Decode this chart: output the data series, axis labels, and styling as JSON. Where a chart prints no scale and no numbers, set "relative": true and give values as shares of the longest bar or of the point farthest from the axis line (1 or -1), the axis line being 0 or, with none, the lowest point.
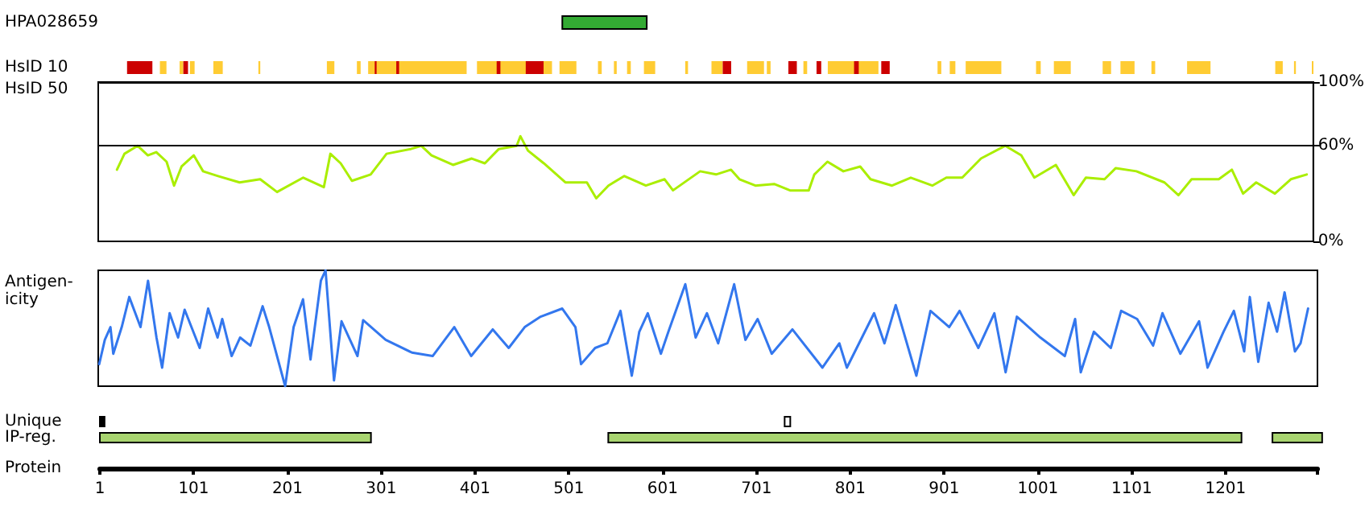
{
  "chart_data": [
    {
      "type": "bar",
      "orientation": "horizontal",
      "categories": [
        "HPA028659",
        "HsID 10"
      ],
      "xlim": [
        1,
        1299
      ],
      "tick_labels": "y",
      "series": [
        {
          "color": "#33aa33",
          "base": [
            494,
            null
          ],
          "values": [
            90,
            null
          ]
        },
        {
          "color": "#ffcc33",
          "base": [
            null,
            65
          ],
          "values": [
            null,
            7
          ]
        },
        {
          "color": "#ffcc33",
          "base": [
            null,
            86
          ],
          "values": [
            null,
            4
          ]
        },
        {
          "color": "#ffcc33",
          "base": [
            null,
            97
          ],
          "values": [
            null,
            5
          ]
        },
        {
          "color": "#ffcc33",
          "base": [
            null,
            122
          ],
          "values": [
            null,
            10
          ]
        },
        {
          "color": "#ffcc33",
          "base": [
            null,
            170
          ],
          "values": [
            null,
            2
          ]
        },
        {
          "color": "#ffcc33",
          "base": [
            null,
            243
          ],
          "values": [
            null,
            8
          ]
        },
        {
          "color": "#ffcc33",
          "base": [
            null,
            275
          ],
          "values": [
            null,
            4
          ]
        },
        {
          "color": "#ffcc33",
          "base": [
            null,
            287
          ],
          "values": [
            null,
            32
          ]
        },
        {
          "color": "#ffcc33",
          "base": [
            null,
            319
          ],
          "values": [
            null,
            73
          ]
        },
        {
          "color": "#ffcc33",
          "base": [
            null,
            403
          ],
          "values": [
            null,
            54
          ]
        },
        {
          "color": "#ffcc33",
          "base": [
            null,
            474
          ],
          "values": [
            null,
            9
          ]
        },
        {
          "color": "#ffcc33",
          "base": [
            null,
            491
          ],
          "values": [
            null,
            18
          ]
        },
        {
          "color": "#ffcc33",
          "base": [
            null,
            532
          ],
          "values": [
            null,
            4
          ]
        },
        {
          "color": "#ffcc33",
          "base": [
            null,
            549
          ],
          "values": [
            null,
            3
          ]
        },
        {
          "color": "#ffcc33",
          "base": [
            null,
            563
          ],
          "values": [
            null,
            4
          ]
        },
        {
          "color": "#ffcc33",
          "base": [
            null,
            581
          ],
          "values": [
            null,
            12
          ]
        },
        {
          "color": "#ffcc33",
          "base": [
            null,
            625
          ],
          "values": [
            null,
            3
          ]
        },
        {
          "color": "#ffcc33",
          "base": [
            null,
            653
          ],
          "values": [
            null,
            12
          ]
        },
        {
          "color": "#ffcc33",
          "base": [
            null,
            691
          ],
          "values": [
            null,
            18
          ]
        },
        {
          "color": "#ffcc33",
          "base": [
            null,
            712
          ],
          "values": [
            null,
            4
          ]
        },
        {
          "color": "#ffcc33",
          "base": [
            null,
            751
          ],
          "values": [
            null,
            4
          ]
        },
        {
          "color": "#ffcc33",
          "base": [
            null,
            777
          ],
          "values": [
            null,
            54
          ]
        },
        {
          "color": "#ffcc33",
          "base": [
            null,
            894
          ],
          "values": [
            null,
            4
          ]
        },
        {
          "color": "#ffcc33",
          "base": [
            null,
            907
          ],
          "values": [
            null,
            6
          ]
        },
        {
          "color": "#ffcc33",
          "base": [
            null,
            924
          ],
          "values": [
            null,
            38
          ]
        },
        {
          "color": "#ffcc33",
          "base": [
            null,
            999
          ],
          "values": [
            null,
            5
          ]
        },
        {
          "color": "#ffcc33",
          "base": [
            null,
            1018
          ],
          "values": [
            null,
            18
          ]
        },
        {
          "color": "#ffcc33",
          "base": [
            null,
            1070
          ],
          "values": [
            null,
            9
          ]
        },
        {
          "color": "#ffcc33",
          "base": [
            null,
            1089
          ],
          "values": [
            null,
            15
          ]
        },
        {
          "color": "#ffcc33",
          "base": [
            null,
            1122
          ],
          "values": [
            null,
            4
          ]
        },
        {
          "color": "#ffcc33",
          "base": [
            null,
            1160
          ],
          "values": [
            null,
            25
          ]
        },
        {
          "color": "#ffcc33",
          "base": [
            null,
            1254
          ],
          "values": [
            null,
            8
          ]
        },
        {
          "color": "#ffcc33",
          "base": [
            null,
            1274
          ],
          "values": [
            null,
            2
          ]
        },
        {
          "color": "#ffcc33",
          "base": [
            null,
            1293
          ],
          "values": [
            null,
            1
          ]
        },
        {
          "color": "#cc0000",
          "base": [
            null,
            30
          ],
          "values": [
            null,
            27
          ]
        },
        {
          "color": "#cc0000",
          "base": [
            null,
            90
          ],
          "values": [
            null,
            5
          ]
        },
        {
          "color": "#cc0000",
          "base": [
            null,
            294
          ],
          "values": [
            null,
            2
          ]
        },
        {
          "color": "#cc0000",
          "base": [
            null,
            317
          ],
          "values": [
            null,
            3
          ]
        },
        {
          "color": "#cc0000",
          "base": [
            null,
            424
          ],
          "values": [
            null,
            4
          ]
        },
        {
          "color": "#cc0000",
          "base": [
            null,
            455
          ],
          "values": [
            null,
            19
          ]
        },
        {
          "color": "#cc0000",
          "base": [
            null,
            665
          ],
          "values": [
            null,
            9
          ]
        },
        {
          "color": "#cc0000",
          "base": [
            null,
            735
          ],
          "values": [
            null,
            9
          ]
        },
        {
          "color": "#cc0000",
          "base": [
            null,
            765
          ],
          "values": [
            null,
            5
          ]
        },
        {
          "color": "#cc0000",
          "base": [
            null,
            805
          ],
          "values": [
            null,
            5
          ]
        },
        {
          "color": "#cc0000",
          "base": [
            null,
            834
          ],
          "values": [
            null,
            9
          ]
        }
      ]
    },
    {
      "type": "line",
      "ylabel": "HsID 50",
      "color": "#aaee00",
      "marker": "none",
      "xlim": [
        1,
        1299
      ],
      "ylim": [
        0,
        100
      ],
      "yticks": [
        {
          "value": 0,
          "label": "0%"
        },
        {
          "value": 60,
          "label": "60%"
        },
        {
          "value": 100,
          "label": "100%"
        }
      ],
      "tick_labels": "y",
      "ref_lines": [
        {
          "axis": "y",
          "value": 60,
          "color": "#000000"
        }
      ],
      "x": [
        21,
        29,
        43,
        54,
        63,
        74,
        82,
        90,
        103,
        113,
        129,
        152,
        174,
        192,
        220,
        242,
        249,
        260,
        272,
        292,
        309,
        335,
        346,
        357,
        380,
        400,
        414,
        429,
        448,
        452,
        460,
        477,
        500,
        523,
        533,
        546,
        563,
        586,
        606,
        615,
        644,
        661,
        677,
        686,
        703,
        723,
        740,
        760,
        766,
        780,
        797,
        815,
        826,
        849,
        869,
        892,
        907,
        924,
        944,
        970,
        987,
        1001,
        1024,
        1043,
        1056,
        1076,
        1088,
        1110,
        1140,
        1155,
        1169,
        1198,
        1212,
        1224,
        1238,
        1258,
        1275,
        1292
      ],
      "values": [
        45,
        55,
        60,
        54,
        56,
        50,
        35,
        47,
        54,
        44,
        41,
        37,
        39,
        31,
        40,
        34,
        55,
        49,
        38,
        42,
        55,
        58,
        60,
        54,
        48,
        52,
        49,
        58,
        60,
        66,
        57,
        49,
        37,
        37,
        27,
        35,
        41,
        35,
        39,
        32,
        44,
        42,
        45,
        39,
        35,
        36,
        32,
        32,
        42,
        50,
        44,
        47,
        39,
        35,
        40,
        35,
        40,
        40,
        52,
        60,
        54,
        40,
        48,
        29,
        40,
        39,
        46,
        44,
        37,
        29,
        39,
        39,
        45,
        30,
        37,
        30,
        39,
        42
      ]
    },
    {
      "type": "line",
      "ylabel": "Antigen-\nicity",
      "color": "#3377ee",
      "marker": "none",
      "relative": true,
      "xlim": [
        1,
        1299
      ],
      "tick_labels": false,
      "x": [
        2,
        8,
        14,
        17,
        26,
        34,
        46,
        54,
        63,
        69,
        77,
        86,
        93,
        109,
        118,
        128,
        133,
        143,
        152,
        163,
        176,
        183,
        200,
        209,
        219,
        227,
        238,
        243,
        252,
        260,
        277,
        283,
        307,
        335,
        357,
        380,
        398,
        421,
        438,
        455,
        472,
        495,
        509,
        515,
        530,
        543,
        557,
        569,
        577,
        586,
        600,
        608,
        626,
        637,
        649,
        661,
        678,
        690,
        703,
        718,
        740,
        772,
        790,
        798,
        827,
        838,
        850,
        872,
        887,
        907,
        918,
        938,
        955,
        967,
        979,
        1004,
        1030,
        1041,
        1047,
        1061,
        1079,
        1090,
        1107,
        1124,
        1134,
        1153,
        1173,
        1182,
        1199,
        1210,
        1221,
        1227,
        1236,
        1247,
        1256,
        1264,
        1275,
        1281,
        1289
      ],
      "values": [
        0.19,
        0.4,
        0.51,
        0.28,
        0.51,
        0.77,
        0.51,
        0.91,
        0.42,
        0.16,
        0.63,
        0.42,
        0.66,
        0.33,
        0.67,
        0.42,
        0.58,
        0.26,
        0.42,
        0.35,
        0.69,
        0.51,
        0,
        0.51,
        0.75,
        0.23,
        0.91,
        1,
        0.05,
        0.56,
        0.26,
        0.57,
        0.4,
        0.29,
        0.26,
        0.51,
        0.26,
        0.49,
        0.33,
        0.51,
        0.6,
        0.67,
        0.51,
        0.19,
        0.33,
        0.37,
        0.65,
        0.09,
        0.47,
        0.63,
        0.28,
        0.47,
        0.88,
        0.42,
        0.63,
        0.37,
        0.88,
        0.4,
        0.58,
        0.28,
        0.49,
        0.16,
        0.37,
        0.16,
        0.63,
        0.37,
        0.7,
        0.09,
        0.65,
        0.51,
        0.65,
        0.33,
        0.63,
        0.12,
        0.6,
        0.42,
        0.26,
        0.58,
        0.12,
        0.47,
        0.33,
        0.65,
        0.58,
        0.35,
        0.63,
        0.28,
        0.56,
        0.16,
        0.47,
        0.65,
        0.3,
        0.77,
        0.21,
        0.72,
        0.47,
        0.81,
        0.3,
        0.37,
        0.67
      ]
    },
    {
      "type": "bar",
      "orientation": "horizontal",
      "categories": [
        "Unique",
        "IP-reg."
      ],
      "xlabel": "Protein",
      "xlim": [
        1,
        1299
      ],
      "xticks": [
        1,
        101,
        201,
        301,
        401,
        501,
        601,
        701,
        801,
        901,
        1001,
        1101,
        1201,
        {
          "value": 1299,
          "label": null
        }
      ],
      "series": [
        {
          "base": [
            1,
            1
          ],
          "values": [
            5,
            289
          ],
          "colors": [
            "#000000",
            "#a8d470"
          ]
        },
        {
          "base": [
            731,
            543
          ],
          "values": [
            6,
            675
          ],
          "colors": [
            "#ffffff",
            "#a8d470"
          ]
        },
        {
          "base": [
            null,
            1251
          ],
          "values": [
            null,
            53
          ],
          "colors": [
            null,
            "#a8d470"
          ]
        }
      ]
    }
  ]
}
